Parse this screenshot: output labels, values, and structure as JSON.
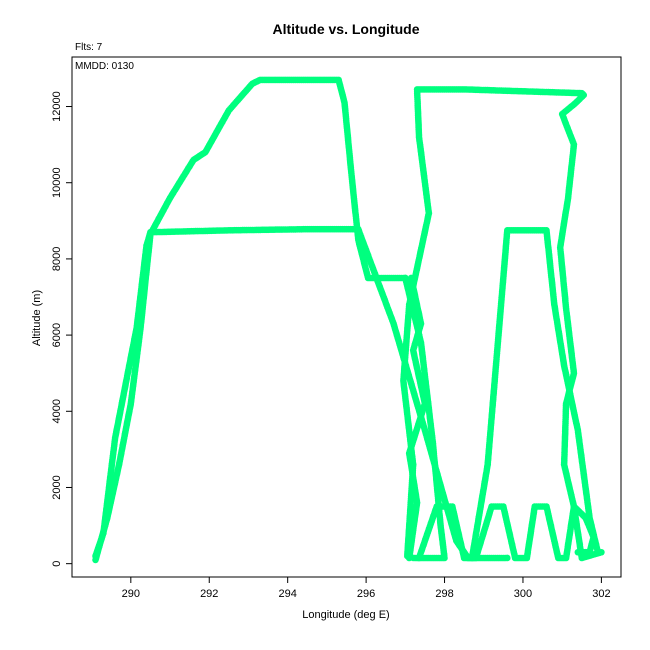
{
  "chart_data": {
    "type": "scatter",
    "title": "Altitude vs. Longitude",
    "xlabel": "Longitude (deg E)",
    "ylabel": "Altitude (m)",
    "xlim": [
      288.5,
      302.5
    ],
    "ylim": [
      -350,
      13300
    ],
    "x_ticks": [
      290,
      292,
      294,
      296,
      298,
      300,
      302
    ],
    "y_ticks": [
      0,
      2000,
      4000,
      6000,
      8000,
      10000,
      12000
    ],
    "annotations": [
      "Flts: 7",
      "MMDD: 0130"
    ],
    "grid": false,
    "marker_color": "#00FF7F",
    "series": [
      {
        "points": [
          [
            289.1,
            100
          ],
          [
            289.4,
            1200
          ],
          [
            289.7,
            2600
          ],
          [
            290.0,
            4200
          ],
          [
            290.25,
            6200
          ],
          [
            290.5,
            8650
          ],
          [
            291.0,
            9600
          ],
          [
            291.6,
            10600
          ],
          [
            291.9,
            10800
          ],
          [
            292.5,
            11900
          ],
          [
            293.1,
            12600
          ],
          [
            293.3,
            12700
          ],
          [
            295.3,
            12700
          ],
          [
            295.45,
            12100
          ],
          [
            295.6,
            10500
          ],
          [
            295.8,
            8500
          ],
          [
            296.05,
            7500
          ],
          [
            297.0,
            7500
          ]
        ]
      },
      {
        "points": [
          [
            289.1,
            200
          ],
          [
            289.3,
            800
          ],
          [
            289.6,
            3300
          ],
          [
            290.15,
            6200
          ],
          [
            290.4,
            8350
          ],
          [
            290.5,
            8700
          ],
          [
            292.5,
            8750
          ],
          [
            294.5,
            8780
          ],
          [
            295.8,
            8780
          ],
          [
            296.7,
            6300
          ],
          [
            297.5,
            3500
          ],
          [
            298.3,
            600
          ],
          [
            298.6,
            150
          ],
          [
            299.6,
            150
          ]
        ]
      },
      {
        "points": [
          [
            297.0,
            7500
          ],
          [
            297.4,
            5800
          ],
          [
            297.7,
            3200
          ],
          [
            297.9,
            1000
          ],
          [
            298.0,
            150
          ],
          [
            297.2,
            150
          ]
        ]
      },
      {
        "points": [
          [
            297.05,
            200
          ],
          [
            297.2,
            2600
          ],
          [
            296.95,
            4800
          ],
          [
            297.1,
            6800
          ],
          [
            297.6,
            9200
          ],
          [
            297.35,
            11200
          ],
          [
            297.3,
            12450
          ],
          [
            298.5,
            12450
          ],
          [
            300.0,
            12400
          ],
          [
            301.5,
            12350
          ],
          [
            301.55,
            12300
          ],
          [
            301.35,
            12100
          ],
          [
            301.0,
            11800
          ],
          [
            301.3,
            11000
          ],
          [
            301.15,
            9600
          ],
          [
            300.95,
            8300
          ],
          [
            301.1,
            6700
          ],
          [
            301.3,
            5000
          ],
          [
            301.1,
            4200
          ],
          [
            301.05,
            2600
          ],
          [
            301.3,
            1500
          ],
          [
            301.6,
            1200
          ],
          [
            301.8,
            700
          ],
          [
            301.7,
            300
          ],
          [
            301.4,
            300
          ]
        ]
      },
      {
        "points": [
          [
            297.1,
            150
          ],
          [
            297.3,
            1600
          ],
          [
            297.1,
            2900
          ],
          [
            297.5,
            4200
          ],
          [
            297.2,
            5600
          ],
          [
            297.4,
            6300
          ],
          [
            297.15,
            7500
          ]
        ]
      },
      {
        "points": [
          [
            297.35,
            150
          ],
          [
            297.8,
            1500
          ],
          [
            298.2,
            1500
          ],
          [
            298.5,
            150
          ],
          [
            298.8,
            150
          ],
          [
            299.2,
            1500
          ],
          [
            299.5,
            1500
          ],
          [
            299.8,
            150
          ],
          [
            300.1,
            150
          ],
          [
            300.3,
            1500
          ],
          [
            300.6,
            1500
          ],
          [
            300.9,
            150
          ],
          [
            301.1,
            150
          ],
          [
            301.3,
            1500
          ],
          [
            301.5,
            150
          ],
          [
            302.0,
            300
          ]
        ]
      },
      {
        "points": [
          [
            298.7,
            150
          ],
          [
            299.1,
            2600
          ],
          [
            299.6,
            8750
          ],
          [
            300.6,
            8750
          ],
          [
            300.8,
            6800
          ],
          [
            301.05,
            5200
          ],
          [
            301.4,
            3500
          ],
          [
            301.7,
            1200
          ],
          [
            301.9,
            350
          ]
        ]
      }
    ]
  }
}
